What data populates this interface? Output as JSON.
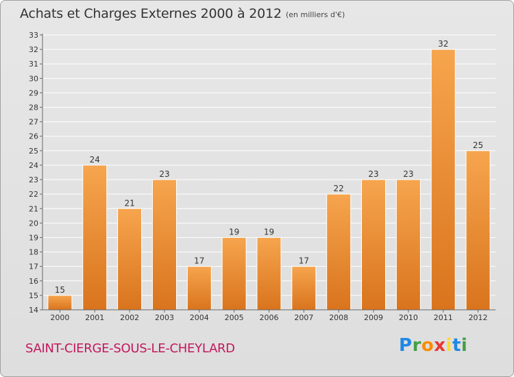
{
  "title": "Achats et Charges Externes 2000 à 2012",
  "unit_note": "(en milliers d'€)",
  "town": "SAINT-CIERGE-SOUS-LE-CHEYLARD",
  "brand": {
    "letters": [
      "P",
      "r",
      "o",
      "x",
      "i",
      "t",
      "i"
    ],
    "colors": [
      "#1e88e5",
      "#43a047",
      "#fb8c00",
      "#e53935",
      "#fdd835",
      "#1e88e5",
      "#43a047"
    ]
  },
  "colors": {
    "bar_light": "#f6a54e",
    "bar_dark": "#d9741d",
    "gridline": "#ffffff",
    "axis": "#666666"
  },
  "chart_data": {
    "type": "bar",
    "categories": [
      "2000",
      "2001",
      "2002",
      "2003",
      "2004",
      "2005",
      "2006",
      "2007",
      "2008",
      "2009",
      "2010",
      "2011",
      "2012"
    ],
    "values": [
      15,
      24,
      21,
      23,
      17,
      19,
      19,
      17,
      22,
      23,
      23,
      32,
      25
    ],
    "ylim": [
      14,
      33
    ],
    "yticks": [
      14,
      15,
      16,
      17,
      18,
      19,
      20,
      21,
      22,
      23,
      24,
      25,
      26,
      27,
      28,
      29,
      30,
      31,
      32,
      33
    ],
    "grid": true,
    "data_labels": true
  }
}
